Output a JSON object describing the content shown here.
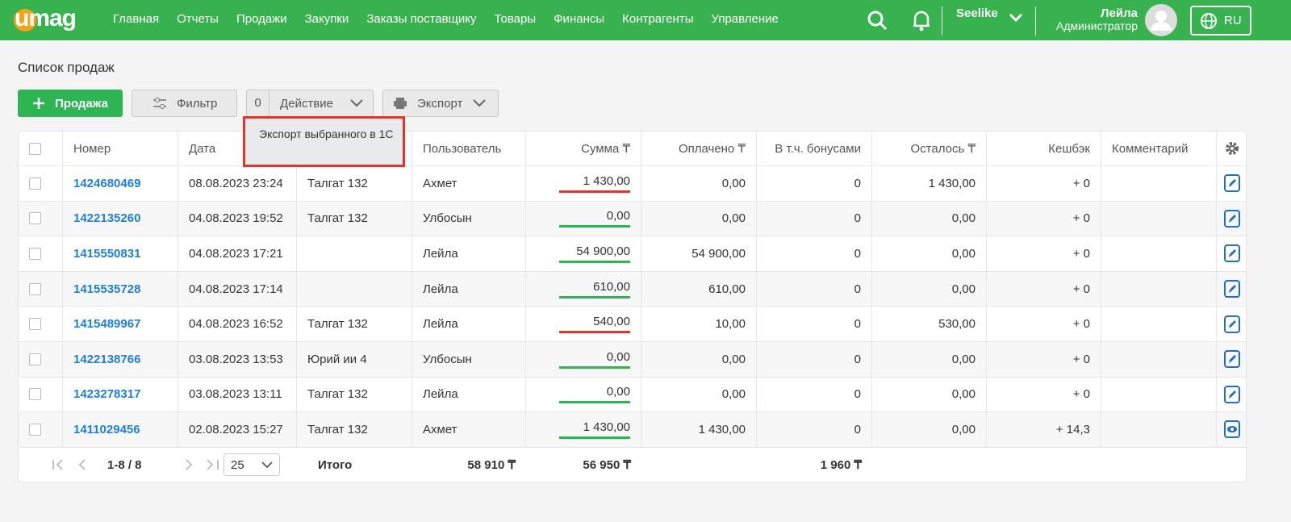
{
  "nav": {
    "logo": "umag",
    "menu": [
      "Главная",
      "Отчеты",
      "Продажи",
      "Закупки",
      "Заказы поставщику",
      "Товары",
      "Финансы",
      "Контрагенты",
      "Управление"
    ],
    "company": "Seelike",
    "user_name": "Лейла",
    "user_role": "Администратор",
    "language": "RU"
  },
  "page_title": "Список продаж",
  "toolbar": {
    "add": "Продажа",
    "filter": "Фильтр",
    "selected_count": "0",
    "action": "Действие",
    "export": "Экспорт"
  },
  "dropdown": {
    "item": "Экспорт выбранного в 1С"
  },
  "table": {
    "headers": {
      "number": "Номер",
      "date": "Дата",
      "user": "Пользователь",
      "sum": "Сумма ₸",
      "paid": "Оплачено ₸",
      "bonus": "В т.ч. бонусами",
      "remain": "Осталось ₸",
      "cashback": "Кешбэк",
      "comment": "Комментарий"
    },
    "rows": [
      {
        "number": "1424680469",
        "date": "08.08.2023 23:24",
        "store": "Талгат 132",
        "user": "Ахмет",
        "sum": "1 430,00",
        "paid": "0,00",
        "bonus": "0",
        "remain": "1 430,00",
        "cashback": "+ 0",
        "underline_color": "#e8322b",
        "icon": "edit"
      },
      {
        "number": "1422135260",
        "date": "04.08.2023 19:52",
        "store": "Талгат 132",
        "user": "Улбосын",
        "sum": "0,00",
        "paid": "0,00",
        "bonus": "0",
        "remain": "0,00",
        "cashback": "+ 0",
        "underline_color": "#2db553",
        "icon": "edit"
      },
      {
        "number": "1415550831",
        "date": "04.08.2023 17:21",
        "store": null,
        "user": "Лейла",
        "sum": "54 900,00",
        "paid": "54 900,00",
        "bonus": "0",
        "remain": "0,00",
        "cashback": "+ 0",
        "underline_color": "#2db553",
        "icon": "edit"
      },
      {
        "number": "1415535728",
        "date": "04.08.2023 17:14",
        "store": null,
        "user": "Лейла",
        "sum": "610,00",
        "paid": "610,00",
        "bonus": "0",
        "remain": "0,00",
        "cashback": "+ 0",
        "underline_color": "#2db553",
        "icon": "edit"
      },
      {
        "number": "1415489967",
        "date": "04.08.2023 16:52",
        "store": "Талгат 132",
        "user": "Лейла",
        "sum": "540,00",
        "paid": "10,00",
        "bonus": "0",
        "remain": "530,00",
        "cashback": "+ 0",
        "underline_color": "#e8322b",
        "icon": "edit"
      },
      {
        "number": "1422138766",
        "date": "03.08.2023 13:53",
        "store": "Юрий ии 4",
        "user": "Улбосын",
        "sum": "0,00",
        "paid": "0,00",
        "bonus": "0",
        "remain": "0,00",
        "cashback": "+ 0",
        "underline_color": "#2db553",
        "icon": "edit"
      },
      {
        "number": "1423278317",
        "date": "03.08.2023 13:11",
        "store": "Талгат 132",
        "user": "Лейла",
        "sum": "0,00",
        "paid": "0,00",
        "bonus": "0",
        "remain": "0,00",
        "cashback": "+ 0",
        "underline_color": "#2db553",
        "icon": "edit"
      },
      {
        "number": "1411029456",
        "date": "02.08.2023 15:27",
        "store": "Талгат 132",
        "user": "Ахмет",
        "sum": "1 430,00",
        "paid": "1 430,00",
        "bonus": "0",
        "remain": "0,00",
        "cashback": "+ 14,3",
        "underline_color": "#2db553",
        "icon": "view"
      }
    ],
    "footer": {
      "range": "1-8 / 8",
      "page_size": "25",
      "total_label": "Итого",
      "sum": "58 910 ₸",
      "paid": "56 950 ₸",
      "remain": "1 960 ₸"
    }
  }
}
